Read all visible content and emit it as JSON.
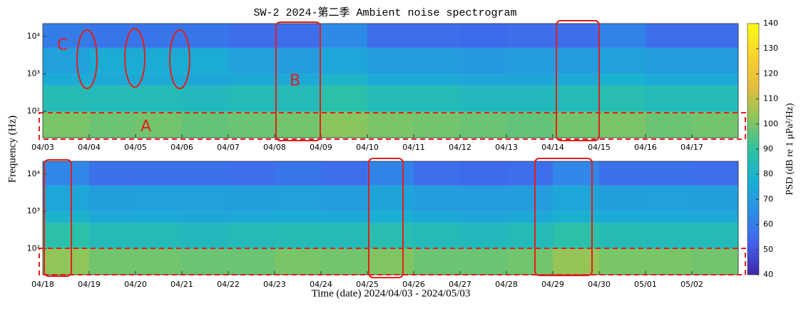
{
  "chart_data": [
    {
      "type": "heatmap",
      "title": "SW-2 2024-第二季 Ambient noise spectrogram",
      "ylabel": "Frequency (Hz)",
      "x": [
        "04/03",
        "04/04",
        "04/05",
        "04/06",
        "04/07",
        "04/08",
        "04/09",
        "04/10",
        "04/11",
        "04/12",
        "04/13",
        "04/14",
        "04/15",
        "04/16",
        "04/17"
      ],
      "log_y": true,
      "ylim": [
        20,
        22000
      ],
      "yticks": [
        {
          "value": 100,
          "label": "10²"
        },
        {
          "value": 1000,
          "label": "10³"
        },
        {
          "value": 10000,
          "label": "10⁴"
        }
      ],
      "ybins": [
        20,
        100,
        500,
        1000,
        5000,
        22000
      ],
      "values": [
        [
          100,
          98,
          99,
          97,
          98,
          99,
          102,
          100,
          99,
          98,
          97,
          99,
          100,
          98,
          99
        ],
        [
          85,
          84,
          84,
          83,
          84,
          84,
          88,
          84,
          84,
          83,
          83,
          84,
          86,
          84,
          84
        ],
        [
          76,
          75,
          75,
          74,
          75,
          75,
          80,
          75,
          75,
          74,
          74,
          75,
          78,
          75,
          75
        ],
        [
          72,
          76,
          76,
          76,
          72,
          70,
          74,
          70,
          70,
          69,
          70,
          70,
          72,
          70,
          70
        ],
        [
          60,
          58,
          58,
          58,
          56,
          56,
          64,
          56,
          56,
          55,
          56,
          56,
          62,
          56,
          56
        ]
      ],
      "annotations": [
        "C",
        "B",
        "A"
      ],
      "colorbar": {
        "label": "PSD (dB re 1 μPa²/Hz)",
        "lim": [
          40,
          140
        ],
        "ticks": [
          40,
          50,
          60,
          70,
          80,
          90,
          100,
          110,
          120,
          130,
          140
        ]
      },
      "colormap": [
        "#3e26a8",
        "#4361ee",
        "#2c8ee6",
        "#18b0d2",
        "#2fc3a0",
        "#8cc55a",
        "#e6bc3c",
        "#f9d42e",
        "#f9fb15"
      ]
    },
    {
      "type": "heatmap",
      "xlabel": "Time (date) 2024/04/03 - 2024/05/03",
      "x": [
        "04/18",
        "04/19",
        "04/20",
        "04/21",
        "04/22",
        "04/23",
        "04/24",
        "04/25",
        "04/26",
        "04/27",
        "04/28",
        "04/29",
        "04/30",
        "05/01",
        "05/02"
      ],
      "log_y": true,
      "ylim": [
        20,
        22000
      ],
      "yticks": [
        {
          "value": 100,
          "label": "10²"
        },
        {
          "value": 1000,
          "label": "10³"
        },
        {
          "value": 10000,
          "label": "10⁴"
        }
      ],
      "ybins": [
        20,
        100,
        500,
        1000,
        5000,
        22000
      ],
      "values": [
        [
          103,
          99,
          99,
          98,
          98,
          100,
          99,
          101,
          98,
          98,
          99,
          104,
          100,
          100,
          99
        ],
        [
          88,
          84,
          84,
          83,
          84,
          85,
          84,
          86,
          84,
          83,
          84,
          88,
          85,
          84,
          84
        ],
        [
          79,
          75,
          75,
          74,
          75,
          76,
          75,
          77,
          75,
          74,
          75,
          78,
          76,
          75,
          75
        ],
        [
          74,
          71,
          72,
          72,
          71,
          72,
          70,
          73,
          70,
          70,
          70,
          74,
          71,
          72,
          71
        ],
        [
          63,
          57,
          57,
          57,
          56,
          58,
          56,
          62,
          56,
          55,
          56,
          63,
          57,
          57,
          56
        ]
      ]
    }
  ]
}
